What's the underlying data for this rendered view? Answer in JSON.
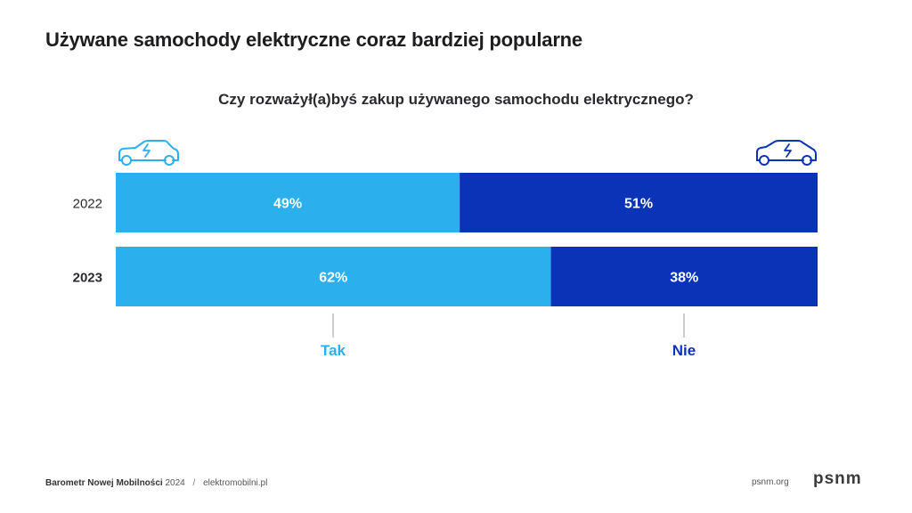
{
  "header": {
    "title": "Używane samochody elektryczne coraz bardziej popularne",
    "subtitle": "Czy rozważył(a)byś zakup używanego samochodu elektrycznego?"
  },
  "chart_data": {
    "type": "bar",
    "orientation": "horizontal",
    "stacked": true,
    "normalized_percent": true,
    "categories": [
      "2022",
      "2023"
    ],
    "series": [
      {
        "name": "Tak",
        "values": [
          49,
          62
        ],
        "color": "#2bb0ed"
      },
      {
        "name": "Nie",
        "values": [
          51,
          38
        ],
        "color": "#0a33b8"
      }
    ],
    "xlim": [
      0,
      100
    ],
    "value_suffix": "%",
    "legend_placement": "bottom",
    "grid": false,
    "icons": [
      "car-electric-icon",
      "car-electric-icon"
    ]
  },
  "footer": {
    "source_name": "Barometr Nowej Mobilności",
    "source_year": "2024",
    "separator": "/",
    "source_site": "elektromobilni.pl",
    "site": "psnm.org",
    "logo": "psnm"
  }
}
